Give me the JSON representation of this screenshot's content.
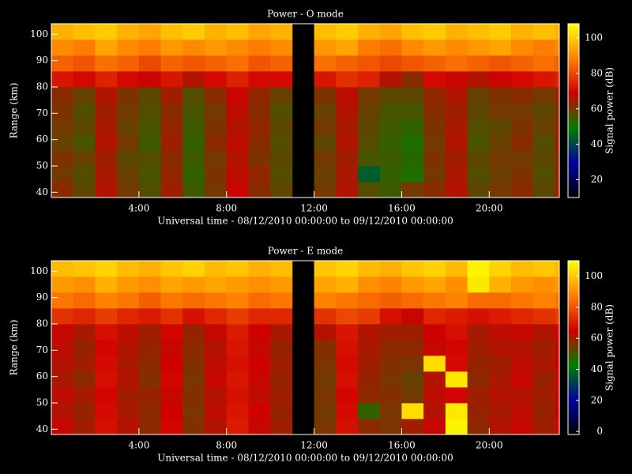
{
  "chart_data": [
    {
      "type": "heatmap",
      "title": "Power - O mode",
      "xlabel": "Universal time - 08/12/2010 00:00:00 to 09/12/2010 00:00:00",
      "ylabel": "Range (km)",
      "colorbar_label": "Signal power (dB)",
      "xlim": [
        0,
        23.2
      ],
      "ylim": [
        38,
        104
      ],
      "xticks": [
        {
          "value": 4,
          "label": "4:00"
        },
        {
          "value": 8,
          "label": "8:00"
        },
        {
          "value": 12,
          "label": "12:00"
        },
        {
          "value": 16,
          "label": "16:00"
        },
        {
          "value": 20,
          "label": "20:00"
        }
      ],
      "yticks": [
        40,
        50,
        60,
        70,
        80,
        90,
        100
      ],
      "clim": [
        10,
        108
      ],
      "cticks": [
        20,
        40,
        60,
        80,
        100
      ],
      "colorscale": [
        "#000000",
        "#0000a0",
        "#008000",
        "#d00000",
        "#ff8000",
        "#ffff00"
      ],
      "x_bins": [
        0,
        1,
        2,
        3,
        4,
        5,
        6,
        7,
        8,
        9,
        10,
        11,
        12,
        13,
        14,
        15,
        16,
        17,
        18,
        19,
        20,
        21,
        22,
        23,
        24
      ],
      "y_bins": [
        38,
        44,
        50,
        56,
        62,
        68,
        74,
        80,
        86,
        92,
        98,
        104
      ],
      "z": [
        [
          62,
          58,
          66,
          60,
          57,
          64,
          55,
          60,
          68,
          62,
          58,
          null,
          60,
          66,
          57,
          55,
          60,
          62,
          66,
          58,
          60,
          62,
          58,
          64
        ],
        [
          60,
          57,
          65,
          59,
          56,
          63,
          54,
          61,
          67,
          63,
          57,
          null,
          59,
          65,
          44,
          54,
          52,
          60,
          65,
          57,
          59,
          61,
          57,
          63
        ],
        [
          61,
          59,
          64,
          58,
          57,
          62,
          55,
          60,
          66,
          61,
          58,
          null,
          60,
          64,
          56,
          55,
          53,
          61,
          64,
          58,
          60,
          60,
          58,
          62
        ],
        [
          59,
          56,
          66,
          60,
          55,
          64,
          54,
          62,
          67,
          62,
          57,
          null,
          58,
          66,
          57,
          54,
          52,
          60,
          66,
          56,
          59,
          62,
          57,
          64
        ],
        [
          60,
          58,
          65,
          59,
          56,
          63,
          55,
          61,
          66,
          63,
          58,
          null,
          60,
          65,
          58,
          55,
          54,
          61,
          65,
          57,
          58,
          61,
          59,
          63
        ],
        [
          61,
          57,
          64,
          60,
          57,
          62,
          56,
          60,
          67,
          62,
          57,
          null,
          59,
          66,
          59,
          56,
          56,
          62,
          64,
          58,
          60,
          60,
          58,
          62
        ],
        [
          62,
          59,
          66,
          61,
          58,
          64,
          57,
          62,
          68,
          63,
          59,
          null,
          61,
          67,
          60,
          58,
          58,
          63,
          66,
          59,
          61,
          62,
          60,
          64
        ],
        [
          72,
          70,
          74,
          70,
          68,
          72,
          66,
          70,
          74,
          70,
          70,
          null,
          72,
          76,
          74,
          66,
          62,
          70,
          68,
          66,
          68,
          70,
          72,
          74
        ],
        [
          84,
          82,
          86,
          84,
          80,
          84,
          82,
          84,
          86,
          82,
          84,
          null,
          86,
          84,
          82,
          80,
          82,
          84,
          86,
          84,
          82,
          84,
          86,
          84
        ],
        [
          90,
          88,
          94,
          90,
          88,
          92,
          90,
          92,
          90,
          88,
          90,
          null,
          92,
          94,
          88,
          86,
          90,
          92,
          90,
          92,
          94,
          90,
          88,
          90
        ],
        [
          96,
          98,
          100,
          96,
          94,
          98,
          100,
          96,
          98,
          94,
          96,
          null,
          98,
          100,
          96,
          94,
          98,
          100,
          96,
          98,
          100,
          96,
          98,
          96
        ]
      ]
    },
    {
      "type": "heatmap",
      "title": "Power - E mode",
      "xlabel": "Universal time - 08/12/2010 00:00:00 to 09/12/2010 00:00:00",
      "ylabel": "Range (km)",
      "colorbar_label": "Signal power (dB)",
      "xlim": [
        0,
        23.2
      ],
      "ylim": [
        38,
        104
      ],
      "xticks": [
        {
          "value": 4,
          "label": "4:00"
        },
        {
          "value": 8,
          "label": "8:00"
        },
        {
          "value": 12,
          "label": "12:00"
        },
        {
          "value": 16,
          "label": "16:00"
        },
        {
          "value": 20,
          "label": "20:00"
        }
      ],
      "yticks": [
        40,
        50,
        60,
        70,
        80,
        90,
        100
      ],
      "clim": [
        -2,
        110
      ],
      "cticks": [
        0,
        20,
        40,
        60,
        80,
        100
      ],
      "colorscale": [
        "#000000",
        "#0000a0",
        "#008000",
        "#d00000",
        "#ff8000",
        "#ffff00"
      ],
      "x_bins": [
        0,
        1,
        2,
        3,
        4,
        5,
        6,
        7,
        8,
        9,
        10,
        11,
        12,
        13,
        14,
        15,
        16,
        17,
        18,
        19,
        20,
        21,
        22,
        23,
        24
      ],
      "y_bins": [
        38,
        44,
        50,
        56,
        62,
        68,
        74,
        80,
        86,
        92,
        98,
        104
      ],
      "z": [
        [
          64,
          60,
          68,
          62,
          58,
          66,
          57,
          62,
          70,
          64,
          60,
          null,
          56,
          68,
          58,
          56,
          60,
          64,
          108,
          58,
          62,
          64,
          60,
          66
        ],
        [
          62,
          59,
          67,
          61,
          58,
          65,
          56,
          63,
          69,
          65,
          59,
          null,
          55,
          67,
          48,
          56,
          104,
          62,
          106,
          59,
          61,
          63,
          59,
          65
        ],
        [
          63,
          61,
          66,
          60,
          59,
          64,
          57,
          62,
          68,
          63,
          60,
          null,
          56,
          66,
          58,
          57,
          55,
          63,
          66,
          60,
          62,
          62,
          60,
          64
        ],
        [
          61,
          58,
          68,
          62,
          57,
          66,
          56,
          64,
          69,
          64,
          59,
          null,
          55,
          68,
          59,
          56,
          54,
          62,
          106,
          58,
          61,
          64,
          59,
          66
        ],
        [
          62,
          60,
          67,
          61,
          58,
          65,
          57,
          63,
          68,
          65,
          60,
          null,
          56,
          67,
          60,
          57,
          56,
          104,
          67,
          59,
          60,
          63,
          61,
          65
        ],
        [
          63,
          59,
          66,
          62,
          59,
          64,
          58,
          62,
          69,
          64,
          59,
          null,
          57,
          68,
          61,
          58,
          58,
          64,
          66,
          60,
          62,
          62,
          60,
          64
        ],
        [
          64,
          61,
          68,
          63,
          60,
          66,
          59,
          64,
          70,
          65,
          61,
          null,
          62,
          69,
          62,
          60,
          60,
          65,
          68,
          61,
          63,
          64,
          62,
          66
        ],
        [
          74,
          72,
          76,
          72,
          70,
          74,
          68,
          72,
          76,
          72,
          72,
          null,
          74,
          78,
          76,
          68,
          64,
          72,
          70,
          68,
          70,
          72,
          74,
          76
        ],
        [
          86,
          84,
          88,
          86,
          82,
          86,
          84,
          86,
          88,
          84,
          86,
          null,
          88,
          86,
          84,
          82,
          84,
          86,
          88,
          84,
          84,
          86,
          88,
          86
        ],
        [
          92,
          90,
          96,
          92,
          90,
          94,
          92,
          94,
          92,
          90,
          92,
          null,
          94,
          96,
          90,
          88,
          92,
          94,
          90,
          106,
          96,
          92,
          90,
          92
        ],
        [
          98,
          100,
          102,
          98,
          96,
          100,
          102,
          98,
          100,
          96,
          98,
          null,
          100,
          102,
          98,
          96,
          100,
          102,
          98,
          108,
          102,
          98,
          100,
          98
        ]
      ]
    }
  ]
}
